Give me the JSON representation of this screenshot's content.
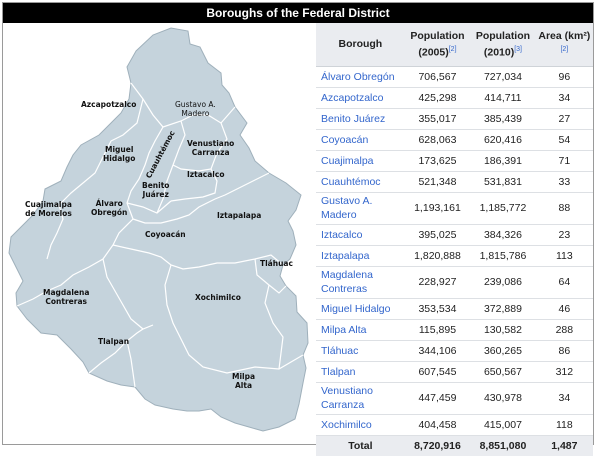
{
  "title": "Boroughs of the Federal District",
  "map": {
    "fill_color": "#c5d3dc",
    "border_color": "#ffffff",
    "labels": [
      {
        "id": "azcapotzalco",
        "lines": [
          "Azcapotzalco"
        ]
      },
      {
        "id": "gustavo-a-madero",
        "lines": [
          "Gustavo A.",
          "Madero"
        ]
      },
      {
        "id": "miguel-hidalgo",
        "lines": [
          "Miguel",
          "Hidalgo"
        ]
      },
      {
        "id": "cuauhtemoc",
        "lines": [
          "Cuauhtémoc"
        ]
      },
      {
        "id": "venustiano-carranza",
        "lines": [
          "Venustiano",
          "Carranza"
        ]
      },
      {
        "id": "iztacalco",
        "lines": [
          "Iztacalco"
        ]
      },
      {
        "id": "benito-juarez",
        "lines": [
          "Benito",
          "Juárez"
        ]
      },
      {
        "id": "alvaro-obregon",
        "lines": [
          "Álvaro",
          "Obregón"
        ]
      },
      {
        "id": "cuajimalpa",
        "lines": [
          "Cuajimalpa",
          "de Morelos"
        ]
      },
      {
        "id": "iztapalapa",
        "lines": [
          "Iztapalapa"
        ]
      },
      {
        "id": "coyoacan",
        "lines": [
          "Coyoacán"
        ]
      },
      {
        "id": "tlahuac",
        "lines": [
          "Tláhuac"
        ]
      },
      {
        "id": "magdalena-contreras",
        "lines": [
          "Magdalena",
          "Contreras"
        ]
      },
      {
        "id": "xochimilco",
        "lines": [
          "Xochimilco"
        ]
      },
      {
        "id": "tlalpan",
        "lines": [
          "Tlalpan"
        ]
      },
      {
        "id": "milpa-alta",
        "lines": [
          "Milpa",
          "Alta"
        ]
      }
    ]
  },
  "table": {
    "headers": {
      "borough": "Borough",
      "pop2005": "Population (2005)",
      "pop2005_ref": "[2]",
      "pop2010": "Population (2010)",
      "pop2010_ref": "[3]",
      "area": "Area (km²)",
      "area_ref": "[2]"
    },
    "rows": [
      {
        "name": "Álvaro Obregón",
        "pop2005": "706,567",
        "pop2010": "727,034",
        "area": "96"
      },
      {
        "name": "Azcapotzalco",
        "pop2005": "425,298",
        "pop2010": "414,711",
        "area": "34"
      },
      {
        "name": "Benito Juárez",
        "pop2005": "355,017",
        "pop2010": "385,439",
        "area": "27"
      },
      {
        "name": "Coyoacán",
        "pop2005": "628,063",
        "pop2010": "620,416",
        "area": "54"
      },
      {
        "name": "Cuajimalpa",
        "pop2005": "173,625",
        "pop2010": "186,391",
        "area": "71"
      },
      {
        "name": "Cuauhtémoc",
        "pop2005": "521,348",
        "pop2010": "531,831",
        "area": "33"
      },
      {
        "name": "Gustavo A. Madero",
        "pop2005": "1,193,161",
        "pop2010": "1,185,772",
        "area": "88"
      },
      {
        "name": "Iztacalco",
        "pop2005": "395,025",
        "pop2010": "384,326",
        "area": "23"
      },
      {
        "name": "Iztapalapa",
        "pop2005": "1,820,888",
        "pop2010": "1,815,786",
        "area": "113"
      },
      {
        "name": "Magdalena Contreras",
        "pop2005": "228,927",
        "pop2010": "239,086",
        "area": "64"
      },
      {
        "name": "Miguel Hidalgo",
        "pop2005": "353,534",
        "pop2010": "372,889",
        "area": "46"
      },
      {
        "name": "Milpa Alta",
        "pop2005": "115,895",
        "pop2010": "130,582",
        "area": "288"
      },
      {
        "name": "Tláhuac",
        "pop2005": "344,106",
        "pop2010": "360,265",
        "area": "86"
      },
      {
        "name": "Tlalpan",
        "pop2005": "607,545",
        "pop2010": "650,567",
        "area": "312"
      },
      {
        "name": "Venustiano Carranza",
        "pop2005": "447,459",
        "pop2010": "430,978",
        "area": "34"
      },
      {
        "name": "Xochimilco",
        "pop2005": "404,458",
        "pop2010": "415,007",
        "area": "118"
      }
    ],
    "total": {
      "label": "Total",
      "pop2005": "8,720,916",
      "pop2010": "8,851,080",
      "area": "1,487"
    }
  }
}
